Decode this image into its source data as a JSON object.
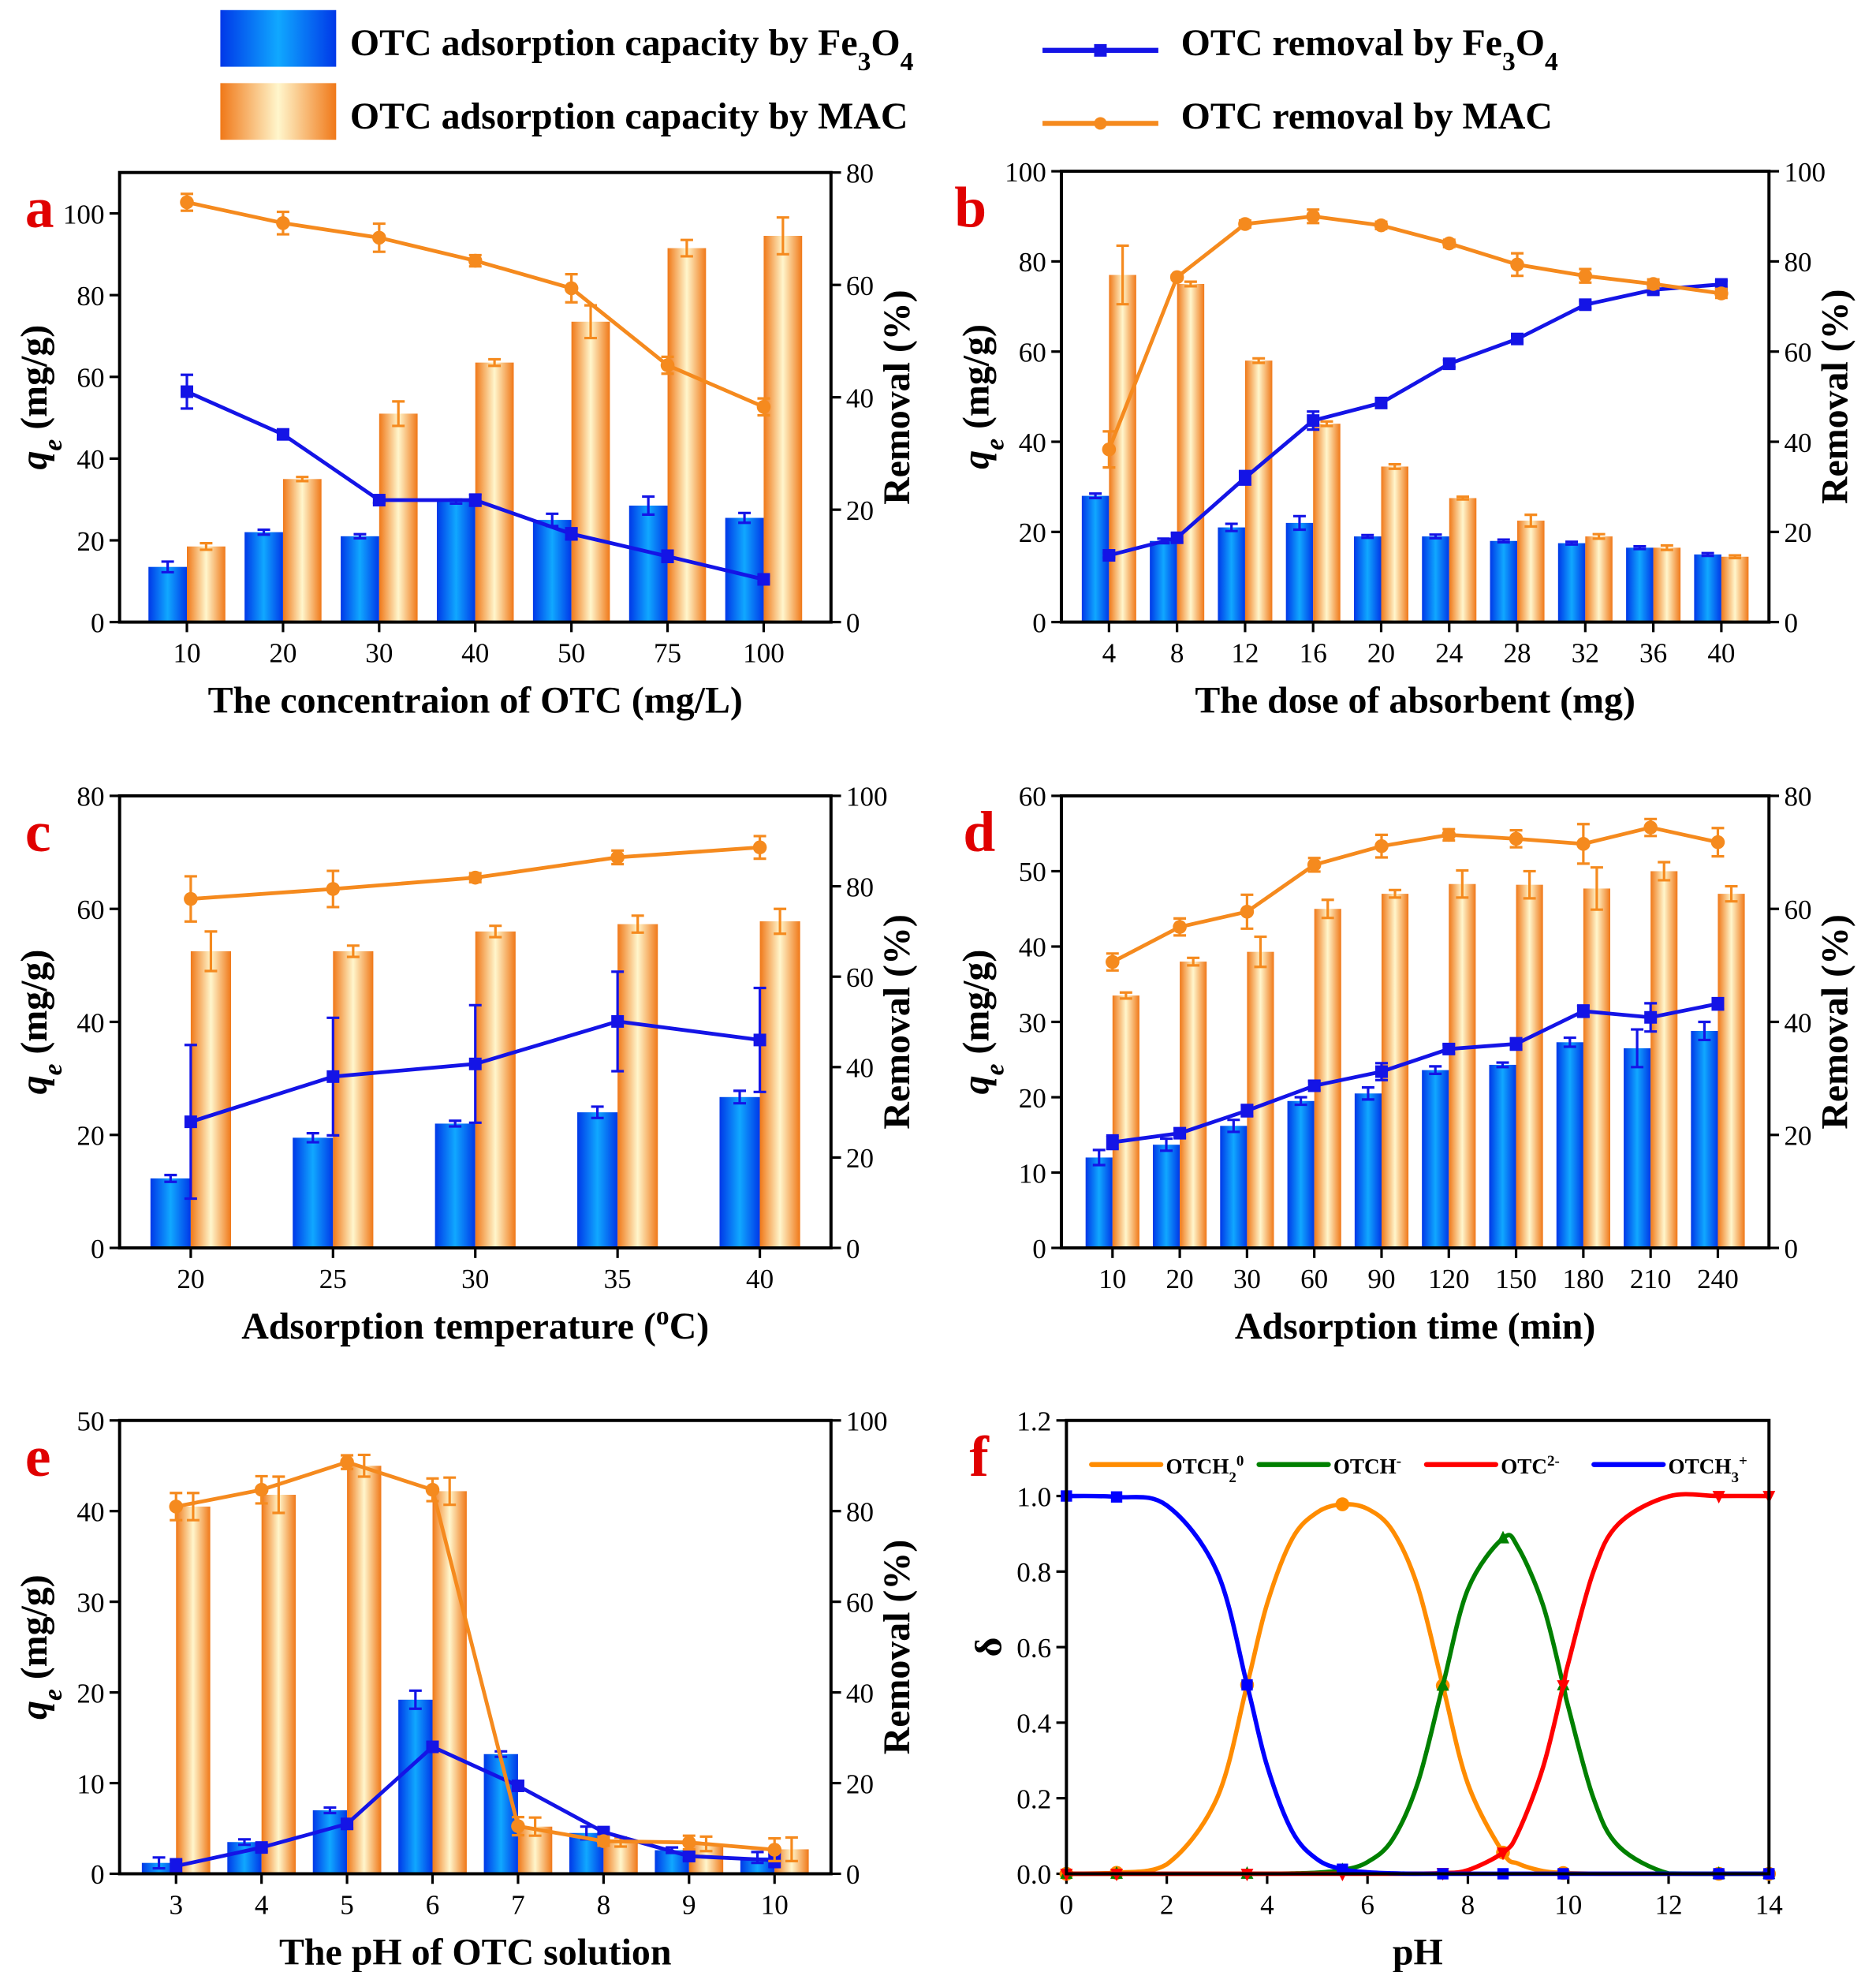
{
  "legend": {
    "items": [
      {
        "kind": "bar",
        "series": "fe",
        "parts": [
          {
            "t": "OTC adsorption capacity by Fe"
          },
          {
            "t": "3",
            "sub": true
          },
          {
            "t": "O"
          },
          {
            "t": "4",
            "sub": true
          }
        ]
      },
      {
        "kind": "bar",
        "series": "mac",
        "parts": [
          {
            "t": "OTC adsorption capacity by MAC"
          }
        ]
      },
      {
        "kind": "line",
        "series": "fe",
        "marker": "square",
        "parts": [
          {
            "t": "OTC removal by Fe"
          },
          {
            "t": "3",
            "sub": true
          },
          {
            "t": "O"
          },
          {
            "t": "4",
            "sub": true
          }
        ]
      },
      {
        "kind": "line",
        "series": "mac",
        "marker": "circle",
        "parts": [
          {
            "t": "OTC removal by MAC"
          }
        ]
      }
    ]
  },
  "colors": {
    "fe_bar_edge": "#0038e8",
    "fe_bar_center": "#10a8ff",
    "mac_bar_edge": "#f07818",
    "mac_bar_center": "#fff6cc",
    "fe_line": "#1414e6",
    "mac_line": "#f58a1e",
    "panel_letter": "#e00000",
    "OTCH2": "#ff8c00",
    "OTCH": "#008000",
    "OTC": "#ff0000",
    "OTCH3": "#0000ff"
  },
  "chart_data": [
    {
      "panel": "a",
      "type": "bar+line",
      "categories": [
        "10",
        "20",
        "30",
        "40",
        "50",
        "75",
        "100"
      ],
      "xlabel": [
        {
          "t": "The concentraion of OTC (mg/L)"
        }
      ],
      "ylabel": [
        {
          "t": "q",
          "it": true
        },
        {
          "t": "e",
          "sub": true,
          "it": true
        },
        {
          "t": " (mg/g)"
        }
      ],
      "y2label": [
        {
          "t": "Removal (%)"
        }
      ],
      "ylim": [
        0,
        110
      ],
      "yticks": [
        0,
        20,
        40,
        60,
        80,
        100
      ],
      "y2lim": [
        0,
        80
      ],
      "y2ticks": [
        0,
        20,
        40,
        60,
        80
      ],
      "fe_bar": [
        13.5,
        22,
        21,
        29.5,
        25,
        28.5,
        25.5
      ],
      "fe_bar_err": [
        1.3,
        0.6,
        0.5,
        0.5,
        1.5,
        2.2,
        1.2
      ],
      "mac_bar": [
        18.5,
        35,
        51,
        63.5,
        73.5,
        91.5,
        94.5
      ],
      "mac_bar_err": [
        0.8,
        0.5,
        3,
        0.8,
        4,
        2,
        4.5
      ],
      "fe_removal": [
        41,
        33.4,
        21.7,
        21.7,
        15.7,
        11.7,
        7.6
      ],
      "fe_removal_err": [
        3,
        0.8,
        0.5,
        1,
        1,
        1,
        0.6
      ],
      "mac_removal": [
        74.7,
        71,
        68.4,
        64.3,
        59.4,
        45.7,
        38.3
      ],
      "mac_removal_err": [
        1.5,
        2,
        2.5,
        1,
        2.5,
        1.5,
        1.5
      ]
    },
    {
      "panel": "b",
      "type": "bar+line",
      "categories": [
        "4",
        "8",
        "12",
        "16",
        "20",
        "24",
        "28",
        "32",
        "36",
        "40"
      ],
      "xlabel": [
        {
          "t": "The dose of absorbent  (mg)"
        }
      ],
      "ylabel": [
        {
          "t": "q",
          "it": true
        },
        {
          "t": "e",
          "sub": true,
          "it": true
        },
        {
          "t": " (mg/g)"
        }
      ],
      "y2label": [
        {
          "t": "Removal (%)"
        }
      ],
      "ylim": [
        0,
        100
      ],
      "yticks": [
        0,
        20,
        40,
        60,
        80,
        100
      ],
      "y2lim": [
        0,
        100
      ],
      "y2ticks": [
        0,
        20,
        40,
        60,
        80,
        100
      ],
      "fe_bar": [
        28,
        18,
        21,
        22,
        19,
        19,
        18,
        17.5,
        16.5,
        15
      ],
      "fe_bar_err": [
        0.5,
        0.5,
        0.8,
        1.5,
        0.3,
        0.4,
        0.3,
        0.3,
        0.3,
        0.3
      ],
      "mac_bar": [
        77,
        75,
        58,
        44,
        34.5,
        27.5,
        22.5,
        19,
        16.5,
        14.5
      ],
      "mac_bar_err": [
        6.5,
        0.5,
        0.5,
        0.5,
        0.5,
        0.3,
        1.3,
        0.5,
        0.5,
        0.3
      ],
      "fe_removal": [
        14.8,
        18.7,
        32,
        44.7,
        48.6,
        57.3,
        62.8,
        70.4,
        73.7,
        74.9
      ],
      "fe_removal_err": [
        0.5,
        1,
        1.5,
        2,
        1,
        0.8,
        0.8,
        0.8,
        0.8,
        0.8
      ],
      "mac_removal": [
        38.3,
        76.5,
        88.3,
        90,
        88,
        84,
        79.3,
        76.8,
        75,
        72.9
      ],
      "mac_removal_err": [
        4,
        0.5,
        0.8,
        1.5,
        0.8,
        0.8,
        2.5,
        1.5,
        1,
        1
      ]
    },
    {
      "panel": "c",
      "type": "bar+line",
      "categories": [
        "20",
        "25",
        "30",
        "35",
        "40"
      ],
      "xlabel": [
        {
          "t": "Adsorption temperature ("
        },
        {
          "t": "o",
          "sup": true
        },
        {
          "t": "C)"
        }
      ],
      "ylabel": [
        {
          "t": "q",
          "it": true
        },
        {
          "t": "e",
          "sub": true,
          "it": true
        },
        {
          "t": " (mg/g)"
        }
      ],
      "y2label": [
        {
          "t": "Removal (%)"
        }
      ],
      "ylim": [
        0,
        80
      ],
      "yticks": [
        0,
        20,
        40,
        60,
        80
      ],
      "y2lim": [
        0,
        100
      ],
      "y2ticks": [
        0,
        20,
        40,
        60,
        80,
        100
      ],
      "fe_bar": [
        12.3,
        19.5,
        22,
        24,
        26.7
      ],
      "fe_bar_err": [
        0.6,
        0.8,
        0.5,
        1,
        1.1
      ],
      "mac_bar": [
        52.5,
        52.5,
        56,
        57.3,
        57.8
      ],
      "mac_bar_err": [
        3.5,
        1,
        1,
        1.5,
        2.2
      ],
      "fe_removal": [
        27.9,
        37.9,
        40.7,
        50.1,
        46
      ],
      "fe_removal_err": [
        17,
        13,
        13,
        11,
        11.5
      ],
      "mac_removal": [
        77.2,
        79.4,
        81.9,
        86.4,
        88.6
      ],
      "mac_removal_err": [
        5,
        4,
        1,
        1.5,
        2.5
      ]
    },
    {
      "panel": "d",
      "type": "bar+line",
      "categories": [
        "10",
        "20",
        "30",
        "60",
        "90",
        "120",
        "150",
        "180",
        "210",
        "240"
      ],
      "xlabel": [
        {
          "t": "Adsorption time (min)"
        }
      ],
      "ylabel": [
        {
          "t": "q",
          "it": true
        },
        {
          "t": "e",
          "sub": true,
          "it": true
        },
        {
          "t": " (mg/g)"
        }
      ],
      "y2label": [
        {
          "t": "Removal (%)"
        }
      ],
      "ylim": [
        0,
        60
      ],
      "yticks": [
        0,
        10,
        20,
        30,
        40,
        50,
        60
      ],
      "y2lim": [
        0,
        80
      ],
      "y2ticks": [
        0,
        20,
        40,
        60,
        80
      ],
      "fe_bar": [
        12,
        13.7,
        16.2,
        19.5,
        20.5,
        23.6,
        24.3,
        27.3,
        26.5,
        28.8
      ],
      "fe_bar_err": [
        1,
        0.8,
        0.8,
        0.5,
        0.8,
        0.5,
        0.3,
        0.6,
        2.5,
        1.2
      ],
      "mac_bar": [
        33.5,
        38,
        39.3,
        45,
        47,
        48.3,
        48.2,
        47.7,
        50,
        47
      ],
      "mac_bar_err": [
        0.4,
        0.5,
        2,
        1.2,
        0.5,
        1.8,
        1.8,
        2.8,
        1.2,
        1
      ],
      "fe_removal": [
        18.7,
        20.3,
        24.3,
        28.7,
        31.2,
        35.2,
        36.1,
        41.9,
        40.8,
        43.2
      ],
      "fe_removal_err": [
        1.2,
        0.8,
        1,
        0.8,
        1.5,
        0.8,
        1,
        1,
        2.5,
        1
      ],
      "mac_removal": [
        50.6,
        56.8,
        59.5,
        67.8,
        71.1,
        73.1,
        72.4,
        71.5,
        74.4,
        71.8
      ],
      "mac_removal_err": [
        1.5,
        1.5,
        3,
        1.2,
        2,
        1,
        1.5,
        3.5,
        1.5,
        2.5
      ]
    },
    {
      "panel": "e",
      "type": "bar+line",
      "categories": [
        "3",
        "4",
        "5",
        "6",
        "7",
        "8",
        "9",
        "10"
      ],
      "xlabel": [
        {
          "t": "The pH of OTC solution"
        }
      ],
      "ylabel": [
        {
          "t": "q",
          "it": true
        },
        {
          "t": "e",
          "sub": true,
          "it": true
        },
        {
          "t": " (mg/g)"
        }
      ],
      "y2label": [
        {
          "t": "Removal (%)"
        }
      ],
      "ylim": [
        0,
        50
      ],
      "yticks": [
        0,
        10,
        20,
        30,
        40,
        50
      ],
      "y2lim": [
        0,
        100
      ],
      "y2ticks": [
        0,
        20,
        40,
        60,
        80,
        100
      ],
      "fe_bar": [
        1.2,
        3.5,
        7,
        19.2,
        13.2,
        4.5,
        2.6,
        1.8
      ],
      "fe_bar_err": [
        0.6,
        0.3,
        0.3,
        1,
        0.3,
        0.7,
        0.3,
        0.6
      ],
      "mac_bar": [
        40.5,
        41.8,
        45,
        42.2,
        5.2,
        3.5,
        3.3,
        2.7
      ],
      "mac_bar_err": [
        1.5,
        2,
        1.2,
        1.5,
        1,
        0.5,
        0.8,
        1.3
      ],
      "fe_removal": [
        1.7,
        5.8,
        11,
        28,
        19.4,
        9.2,
        3.9,
        3
      ],
      "fe_removal_err": [
        1.5,
        0.8,
        1,
        1,
        1,
        0.8,
        0.8,
        1.5
      ],
      "mac_removal": [
        81,
        84.7,
        90.8,
        84.7,
        10.5,
        7.2,
        6.9,
        5.3
      ],
      "mac_removal_err": [
        3,
        3,
        1.5,
        2.5,
        2,
        1,
        1.5,
        2.5
      ]
    },
    {
      "panel": "f",
      "type": "line",
      "xlabel": [
        {
          "t": "pH"
        }
      ],
      "ylabel": [
        {
          "t": "δ"
        }
      ],
      "xlim": [
        0,
        14
      ],
      "xticks": [
        0,
        2,
        4,
        6,
        8,
        10,
        12,
        14
      ],
      "ylim": [
        0,
        1.2
      ],
      "yticks": [
        "0.0",
        "0.2",
        "0.4",
        "0.6",
        "0.8",
        "1.0",
        "1.2"
      ],
      "x": [
        0,
        1,
        2,
        3,
        3.6,
        4,
        4.5,
        5,
        5.5,
        6,
        6.5,
        7,
        7.5,
        8,
        8.7,
        9,
        9.5,
        9.9,
        10,
        10.5,
        11,
        12,
        13,
        14
      ],
      "marker_x": [
        0,
        1,
        3.6,
        5.5,
        7.5,
        8.7,
        9.9,
        13,
        14
      ],
      "series": [
        {
          "key": "OTCH2",
          "marker": "circle",
          "label": [
            {
              "t": "OTCH"
            },
            {
              "t": "2",
              "sub": true
            },
            {
              "t": "0",
              "sup": true
            }
          ],
          "values": [
            0,
            0.0025,
            0.025,
            0.2,
            0.5,
            0.715,
            0.887,
            0.957,
            0.978,
            0.966,
            0.908,
            0.76,
            0.498,
            0.238,
            0.056,
            0.027,
            0.007,
            0.002,
            0.0014,
            0.0002,
            0,
            0,
            0,
            0
          ]
        },
        {
          "key": "OTCH",
          "marker": "triangle-up",
          "label": [
            {
              "t": "OTCH"
            },
            {
              "t": "-",
              "sup": true
            }
          ],
          "values": [
            0,
            0,
            0,
            0,
            0,
            0.0002,
            0.0009,
            0.003,
            0.0098,
            0.031,
            0.091,
            0.24,
            0.498,
            0.753,
            0.888,
            0.864,
            0.71,
            0.499,
            0.442,
            0.201,
            0.0736,
            0.0008,
            0,
            0
          ]
        },
        {
          "key": "OTC",
          "marker": "triangle-down",
          "label": [
            {
              "t": "OTC"
            },
            {
              "t": "2-",
              "sup": true
            }
          ],
          "values": [
            0,
            0,
            0,
            0,
            0,
            0,
            0,
            0,
            0,
            0,
            0,
            0.0003,
            0.002,
            0.0095,
            0.056,
            0.109,
            0.283,
            0.499,
            0.557,
            0.799,
            0.926,
            0.999,
            1,
            1
          ]
        },
        {
          "key": "OTCH3",
          "marker": "square",
          "label": [
            {
              "t": "OTCH"
            },
            {
              "t": "3",
              "sub": true
            },
            {
              "t": "+",
              "sup": true
            }
          ],
          "values": [
            1,
            0.9975,
            0.975,
            0.8,
            0.5,
            0.285,
            0.112,
            0.038,
            0.012,
            0.004,
            0.0011,
            0,
            0,
            0,
            0,
            0,
            0,
            0,
            0,
            0,
            0,
            0,
            0,
            0
          ]
        }
      ]
    }
  ]
}
